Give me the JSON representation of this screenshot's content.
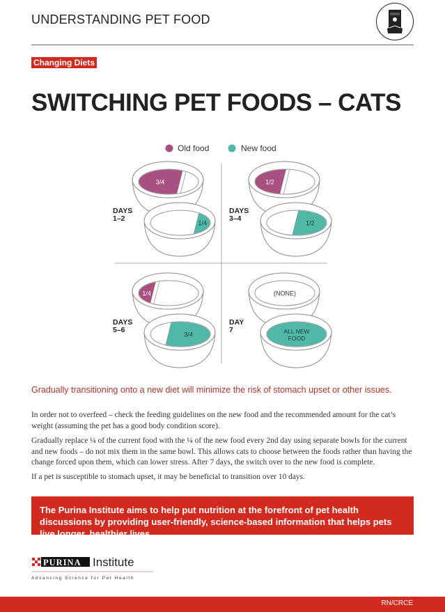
{
  "header": {
    "title": "UNDERSTANDING PET FOOD",
    "icon": "pet-food-bag-icon"
  },
  "badge": "Changing Diets",
  "title": "SWITCHING PET FOODS – CATS",
  "colors": {
    "old_food": "#a8507f",
    "new_food": "#4fb8a6",
    "brand_red": "#d22a1f"
  },
  "legend": {
    "old": "Old food",
    "new": "New food"
  },
  "stages": [
    {
      "label_line1": "DAYS",
      "label_line2": "1–2",
      "old_bowl": "3/4",
      "new_bowl": "1/4"
    },
    {
      "label_line1": "DAYS",
      "label_line2": "3–4",
      "old_bowl": "1/2",
      "new_bowl": "1/2"
    },
    {
      "label_line1": "DAYS",
      "label_line2": "5–6",
      "old_bowl": "1/4",
      "new_bowl": "3/4"
    },
    {
      "label_line1": "DAY",
      "label_line2": "7",
      "old_bowl": "(NONE)",
      "new_bowl_line1": "ALL NEW",
      "new_bowl_line2": "FOOD"
    }
  ],
  "lead": "Gradually transitioning onto a new diet will minimize the risk of stomach upset or other issues.",
  "paragraphs": [
    "In order not to overfeed – check the feeding guidelines on the new food and the recommended amount for the cat’s weight (assuming the pet has a good body condition score).",
    "Gradually replace ¼ of the current food with the ¼ of the new food every 2nd day using separate bowls for the current and new foods – do not mix them in the same bowl. This allows cats to choose between the foods rather than having the change forced upon them, which can lower stress. After 7 days, the switch over to the new food is complete.",
    "If a pet is susceptible to stomach upset, it may be beneficial to transition over 10 days."
  ],
  "callout": "The Purina Institute aims to help put nutrition at the forefront of pet health discussions by providing user-friendly, science-based information that helps pets live longer, healthier lives.",
  "logo": {
    "brand": "PURINA",
    "name": "Institute",
    "tagline": "Advancing Science for Pet Health"
  },
  "footer": {
    "code": "RN/CRCE"
  }
}
